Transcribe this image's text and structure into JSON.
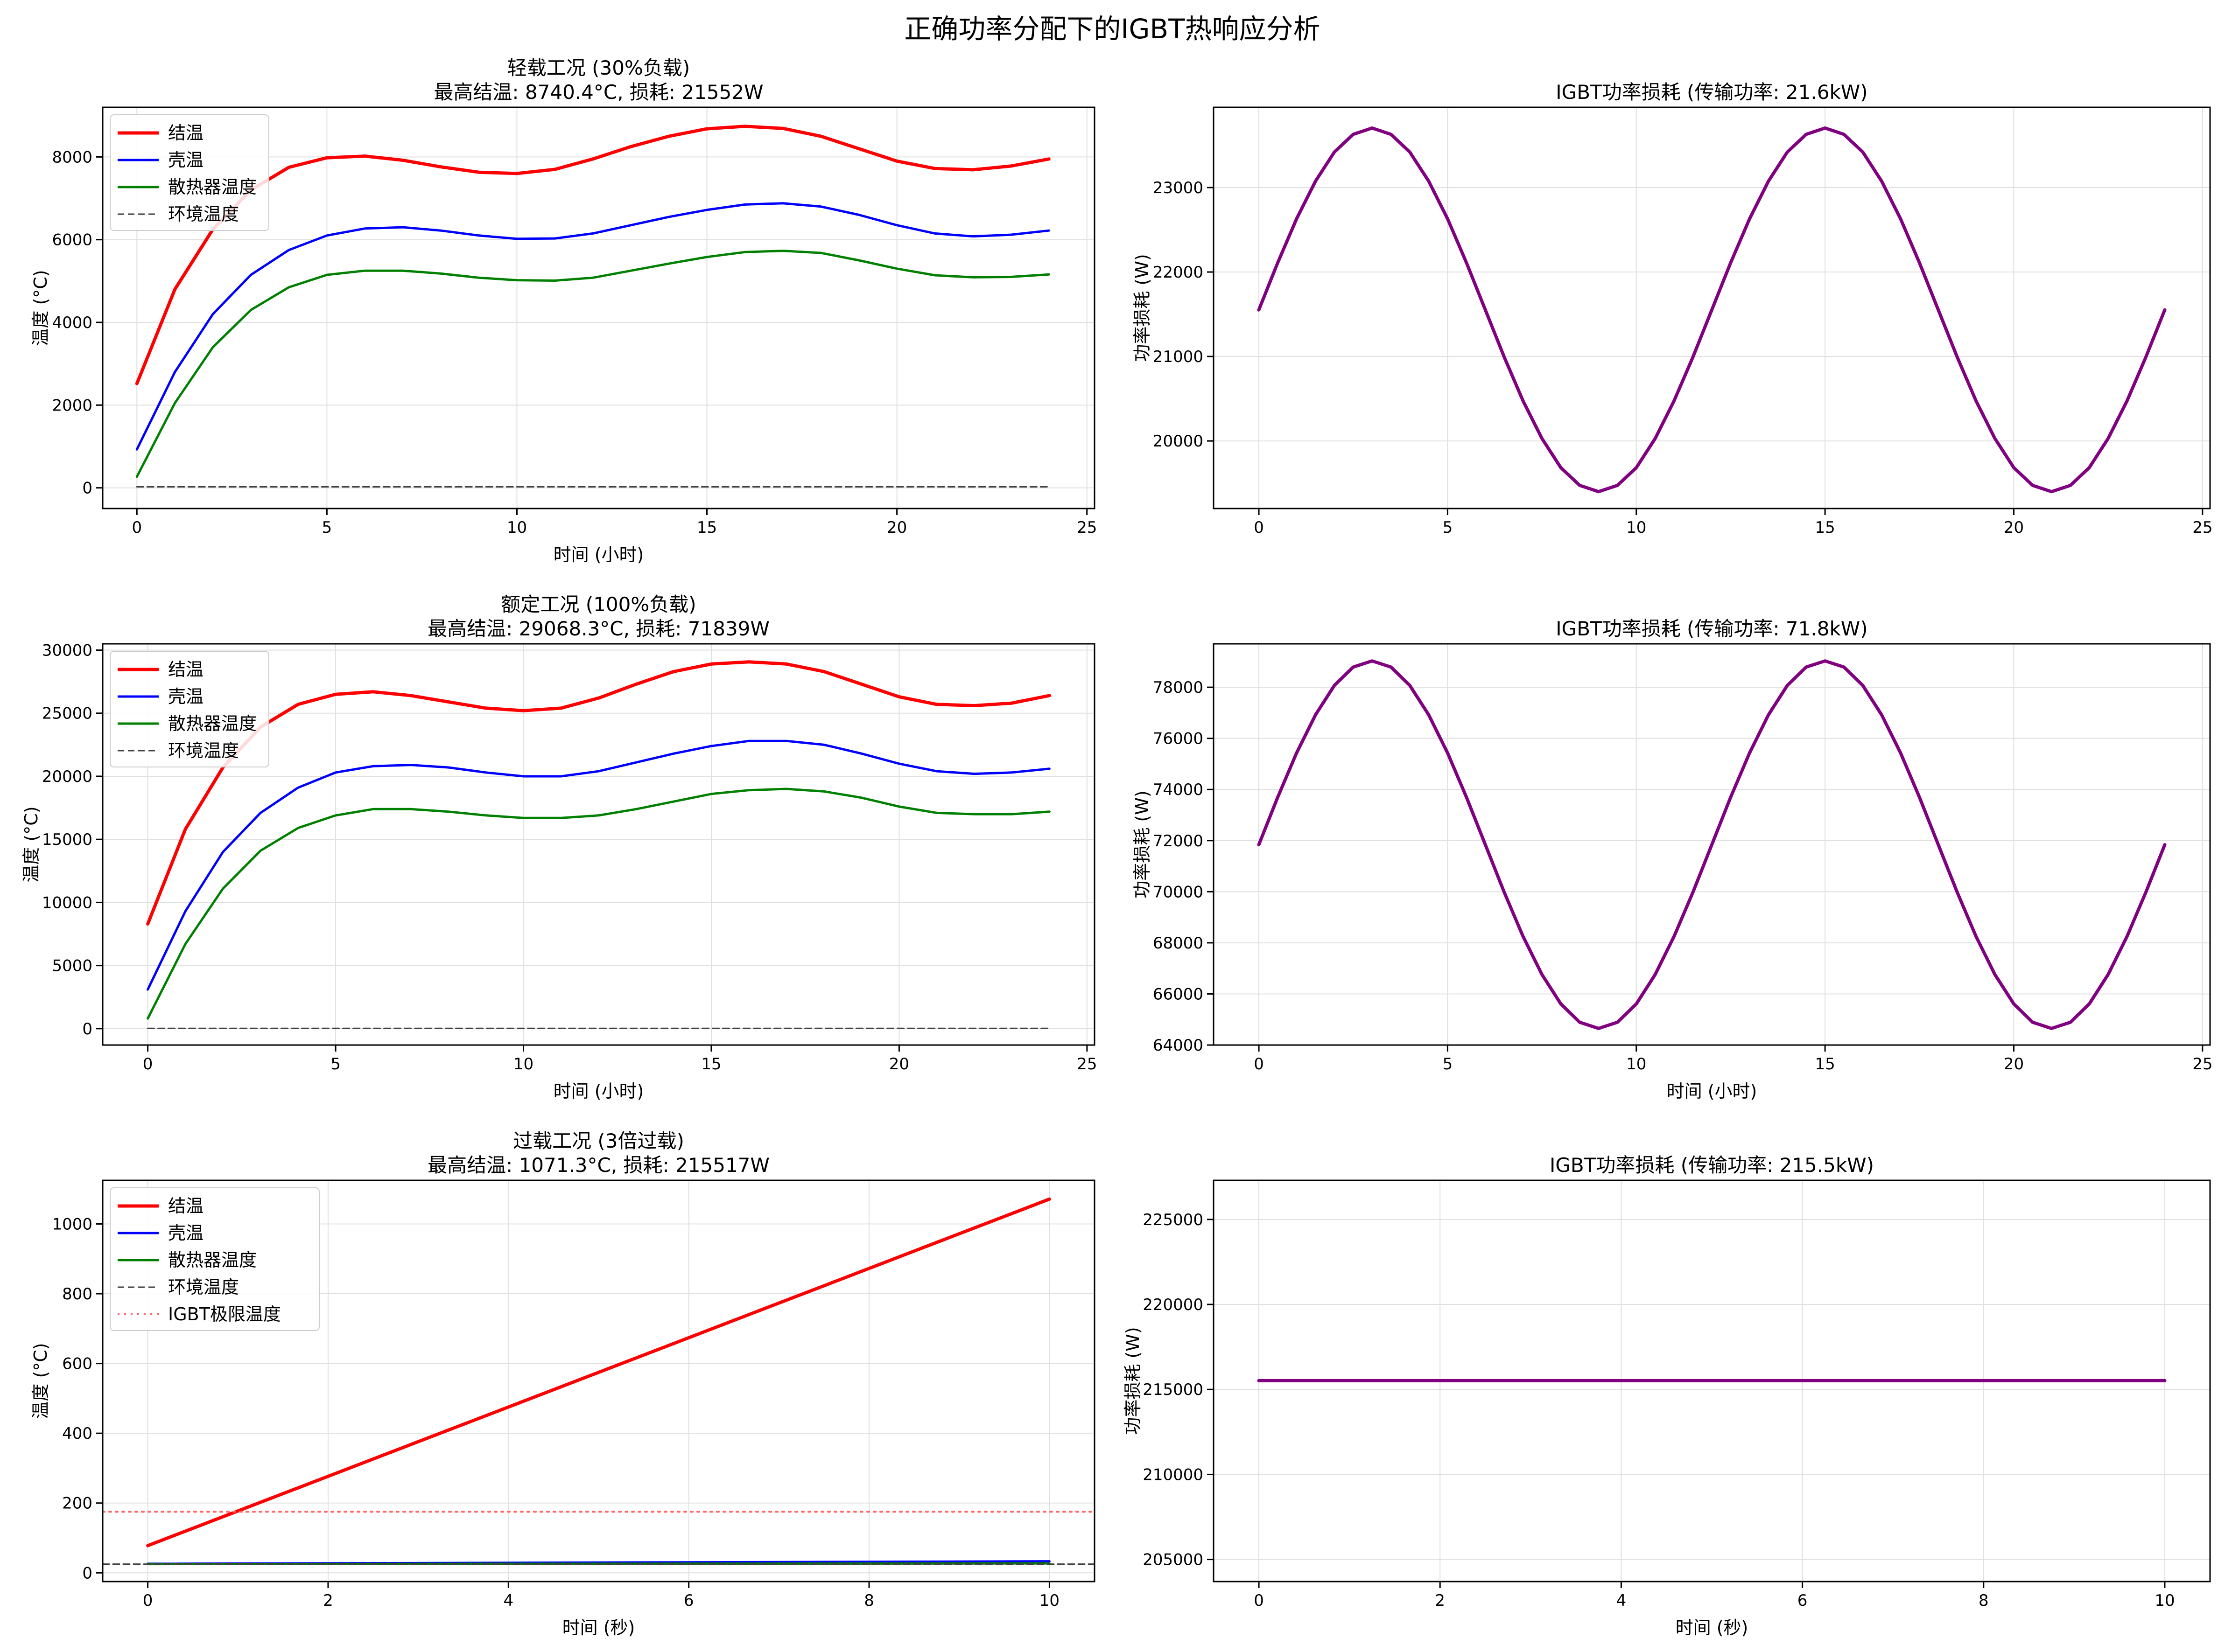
{
  "figure": {
    "suptitle": "正确功率分配下的IGBT热响应分析"
  },
  "colors": {
    "junction": "#ff0000",
    "case": "#0000ff",
    "heatsink": "#008000",
    "ambient": "#404040",
    "limit": "#ff6666",
    "power": "#800080",
    "grid": "#e0e0e0"
  },
  "chart_data": [
    {
      "type": "line",
      "title": "轻载工况 (30%负载)\n最高结温: 8740.4°C, 损耗: 21552W",
      "xlabel": "时间 (小时)",
      "ylabel": "温度 (°C)",
      "xlim": [
        -0.9,
        25.2
      ],
      "ylim": [
        -500,
        9200
      ],
      "xticks": [
        0,
        5,
        10,
        15,
        20,
        25
      ],
      "yticks": [
        0,
        2000,
        4000,
        6000,
        8000
      ],
      "grid": true,
      "legend": "upper-left",
      "series": [
        {
          "name": "结温",
          "color_key": "junction",
          "width": 7,
          "x": [
            0,
            1,
            2,
            3,
            4,
            5,
            6,
            7,
            8,
            9,
            10,
            11,
            12,
            13,
            14,
            15,
            16,
            17,
            18,
            19,
            20,
            21,
            22,
            23,
            24
          ],
          "values": [
            2520,
            4800,
            6250,
            7200,
            7750,
            7980,
            8020,
            7920,
            7760,
            7630,
            7600,
            7700,
            7950,
            8250,
            8500,
            8680,
            8740,
            8690,
            8500,
            8200,
            7900,
            7720,
            7690,
            7780,
            7950
          ]
        },
        {
          "name": "壳温",
          "color_key": "case",
          "width": 5,
          "x": [
            0,
            1,
            2,
            3,
            4,
            5,
            6,
            7,
            8,
            9,
            10,
            11,
            12,
            13,
            14,
            15,
            16,
            17,
            18,
            19,
            20,
            21,
            22,
            23,
            24
          ],
          "values": [
            930,
            2800,
            4200,
            5150,
            5750,
            6100,
            6270,
            6300,
            6220,
            6100,
            6020,
            6030,
            6150,
            6350,
            6550,
            6720,
            6850,
            6880,
            6800,
            6600,
            6350,
            6150,
            6080,
            6120,
            6220
          ]
        },
        {
          "name": "散热器温度",
          "color_key": "heatsink",
          "width": 5,
          "x": [
            0,
            1,
            2,
            3,
            4,
            5,
            6,
            7,
            8,
            9,
            10,
            11,
            12,
            13,
            14,
            15,
            16,
            17,
            18,
            19,
            20,
            21,
            22,
            23,
            24
          ],
          "values": [
            270,
            2050,
            3400,
            4300,
            4850,
            5150,
            5250,
            5250,
            5180,
            5080,
            5020,
            5010,
            5080,
            5250,
            5420,
            5580,
            5700,
            5730,
            5680,
            5500,
            5300,
            5140,
            5090,
            5100,
            5160
          ]
        },
        {
          "name": "环境温度",
          "color_key": "ambient",
          "width": 3,
          "dash": "14,8",
          "x": [
            0,
            24
          ],
          "values": [
            25,
            25
          ]
        }
      ]
    },
    {
      "type": "line",
      "title": "IGBT功率损耗 (传输功率: 21.6kW)",
      "xlabel": "",
      "ylabel": "功率损耗 (W)",
      "xlim": [
        -1.2,
        25.2
      ],
      "ylim": [
        19200,
        23950
      ],
      "xticks": [
        0,
        5,
        10,
        15,
        20,
        25
      ],
      "yticks": [
        20000,
        21000,
        22000,
        23000
      ],
      "grid": true,
      "series": [
        {
          "name": "",
          "color_key": "power",
          "width": 7,
          "x": [
            0,
            0.5,
            1,
            1.5,
            2,
            2.5,
            3,
            3.5,
            4,
            4.5,
            5,
            5.5,
            6,
            6.5,
            7,
            7.5,
            8,
            8.5,
            9,
            9.5,
            10,
            10.5,
            11,
            11.5,
            12,
            12.5,
            13,
            13.5,
            14,
            14.5,
            15,
            15.5,
            16,
            16.5,
            17,
            17.5,
            18,
            18.5,
            19,
            19.5,
            20,
            20.5,
            21,
            21.5,
            22,
            22.5,
            23,
            23.5,
            24
          ],
          "values": [
            21552,
            22110,
            22630,
            23075,
            23420,
            23630,
            23705,
            23630,
            23420,
            23075,
            22630,
            22110,
            21552,
            20994,
            20474,
            20029,
            19684,
            19474,
            19400,
            19474,
            19684,
            20029,
            20474,
            20994,
            21552,
            22110,
            22630,
            23075,
            23420,
            23630,
            23705,
            23630,
            23420,
            23075,
            22630,
            22110,
            21552,
            20994,
            20474,
            20029,
            19684,
            19474,
            19400,
            19474,
            19684,
            20029,
            20474,
            20994,
            21552
          ]
        }
      ]
    },
    {
      "type": "line",
      "title": "额定工况 (100%负载)\n最高结温: 29068.3°C, 损耗: 71839W",
      "xlabel": "时间 (小时)",
      "ylabel": "温度 (°C)",
      "xlim": [
        -1.2,
        25.2
      ],
      "ylim": [
        -1300,
        30500
      ],
      "xticks": [
        0,
        5,
        10,
        15,
        20,
        25
      ],
      "yticks": [
        0,
        5000,
        10000,
        15000,
        20000,
        25000,
        30000
      ],
      "grid": true,
      "legend": "upper-left",
      "series": [
        {
          "name": "结温",
          "color_key": "junction",
          "width": 7,
          "x": [
            0,
            1,
            2,
            3,
            4,
            5,
            6,
            7,
            8,
            9,
            10,
            11,
            12,
            13,
            14,
            15,
            16,
            17,
            18,
            19,
            20,
            21,
            22,
            23,
            24
          ],
          "values": [
            8300,
            15800,
            20700,
            23900,
            25700,
            26500,
            26700,
            26400,
            25900,
            25400,
            25200,
            25400,
            26200,
            27300,
            28300,
            28900,
            29068,
            28900,
            28300,
            27300,
            26300,
            25700,
            25600,
            25800,
            26400
          ]
        },
        {
          "name": "壳温",
          "color_key": "case",
          "width": 5,
          "x": [
            0,
            1,
            2,
            3,
            4,
            5,
            6,
            7,
            8,
            9,
            10,
            11,
            12,
            13,
            14,
            15,
            16,
            17,
            18,
            19,
            20,
            21,
            22,
            23,
            24
          ],
          "values": [
            3100,
            9300,
            14000,
            17100,
            19100,
            20300,
            20800,
            20900,
            20700,
            20300,
            20000,
            20000,
            20400,
            21100,
            21800,
            22400,
            22800,
            22800,
            22500,
            21800,
            21000,
            20400,
            20200,
            20300,
            20600
          ]
        },
        {
          "name": "散热器温度",
          "color_key": "heatsink",
          "width": 5,
          "x": [
            0,
            1,
            2,
            3,
            4,
            5,
            6,
            7,
            8,
            9,
            10,
            11,
            12,
            13,
            14,
            15,
            16,
            17,
            18,
            19,
            20,
            21,
            22,
            23,
            24
          ],
          "values": [
            800,
            6700,
            11100,
            14100,
            15900,
            16900,
            17400,
            17400,
            17200,
            16900,
            16700,
            16700,
            16900,
            17400,
            18000,
            18600,
            18900,
            19000,
            18800,
            18300,
            17600,
            17100,
            17000,
            17000,
            17200
          ]
        },
        {
          "name": "环境温度",
          "color_key": "ambient",
          "width": 3,
          "dash": "14,8",
          "x": [
            0,
            24
          ],
          "values": [
            25,
            25
          ]
        }
      ]
    },
    {
      "type": "line",
      "title": "IGBT功率损耗 (传输功率: 71.8kW)",
      "xlabel": "时间 (小时)",
      "ylabel": "功率损耗 (W)",
      "xlim": [
        -1.2,
        25.2
      ],
      "ylim": [
        64000,
        79700
      ],
      "xticks": [
        0,
        5,
        10,
        15,
        20,
        25
      ],
      "yticks": [
        64000,
        66000,
        68000,
        70000,
        72000,
        74000,
        76000,
        78000
      ],
      "grid": true,
      "series": [
        {
          "name": "",
          "color_key": "power",
          "width": 7,
          "x": [
            0,
            0.5,
            1,
            1.5,
            2,
            2.5,
            3,
            3.5,
            4,
            4.5,
            5,
            5.5,
            6,
            6.5,
            7,
            7.5,
            8,
            8.5,
            9,
            9.5,
            10,
            10.5,
            11,
            11.5,
            12,
            12.5,
            13,
            13.5,
            14,
            14.5,
            15,
            15.5,
            16,
            16.5,
            17,
            17.5,
            18,
            18.5,
            19,
            19.5,
            20,
            20.5,
            21,
            21.5,
            22,
            22.5,
            23,
            23.5,
            24
          ],
          "values": [
            71839,
            73700,
            75430,
            76920,
            78070,
            78790,
            79030,
            78790,
            78070,
            76920,
            75430,
            73700,
            71839,
            69980,
            68250,
            66760,
            65610,
            64890,
            64650,
            64890,
            65610,
            66760,
            68250,
            69980,
            71839,
            73700,
            75430,
            76920,
            78070,
            78790,
            79030,
            78790,
            78070,
            76920,
            75430,
            73700,
            71839,
            69980,
            68250,
            66760,
            65610,
            64890,
            64650,
            64890,
            65610,
            66760,
            68250,
            69980,
            71839
          ]
        }
      ]
    },
    {
      "type": "line",
      "title": "过载工况 (3倍过载)\n最高结温: 1071.3°C, 损耗: 215517W",
      "xlabel": "时间 (秒)",
      "ylabel": "温度 (°C)",
      "xlim": [
        -0.5,
        10.5
      ],
      "ylim": [
        -25,
        1125
      ],
      "xticks": [
        0,
        2,
        4,
        6,
        8,
        10
      ],
      "yticks": [
        0,
        200,
        400,
        600,
        800,
        1000
      ],
      "grid": true,
      "legend": "upper-left",
      "series": [
        {
          "name": "结温",
          "color_key": "junction",
          "width": 7,
          "x": [
            0,
            10
          ],
          "values": [
            78,
            1071.3
          ]
        },
        {
          "name": "壳温",
          "color_key": "case",
          "width": 5,
          "x": [
            0,
            10
          ],
          "values": [
            26,
            33
          ]
        },
        {
          "name": "散热器温度",
          "color_key": "heatsink",
          "width": 5,
          "x": [
            0,
            10
          ],
          "values": [
            25,
            27
          ]
        },
        {
          "name": "环境温度",
          "color_key": "ambient",
          "width": 3,
          "dash": "14,8",
          "x": [
            -0.5,
            10.5
          ],
          "values": [
            25,
            25
          ]
        },
        {
          "name": "IGBT极限温度",
          "color_key": "limit",
          "width": 4,
          "dash": "4,10",
          "x": [
            -0.5,
            10.5
          ],
          "values": [
            175,
            175
          ]
        }
      ]
    },
    {
      "type": "line",
      "title": "IGBT功率损耗 (传输功率: 215.5kW)",
      "xlabel": "时间 (秒)",
      "ylabel": "功率损耗 (W)",
      "xlim": [
        -0.5,
        10.5
      ],
      "ylim": [
        203700,
        227300
      ],
      "xticks": [
        0,
        2,
        4,
        6,
        8,
        10
      ],
      "yticks": [
        205000,
        210000,
        215000,
        220000,
        225000
      ],
      "grid": true,
      "series": [
        {
          "name": "",
          "color_key": "power",
          "width": 7,
          "x": [
            0,
            10
          ],
          "values": [
            215517,
            215517
          ]
        }
      ]
    }
  ]
}
